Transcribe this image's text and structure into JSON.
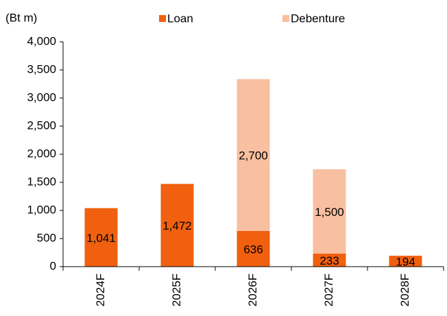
{
  "chart_data": {
    "type": "bar",
    "stacked": true,
    "y_label": "(Bt m)",
    "categories": [
      "2024F",
      "2025F",
      "2026F",
      "2027F",
      "2028F"
    ],
    "series": [
      {
        "name": "Loan",
        "color": "#f0600f",
        "values": [
          1041,
          1472,
          636,
          233,
          194
        ],
        "value_labels": [
          "1,041",
          "1,472",
          "636",
          "233",
          "194"
        ]
      },
      {
        "name": "Debenture",
        "color": "#f8bfa0",
        "values": [
          null,
          null,
          2700,
          1500,
          null
        ],
        "value_labels": [
          null,
          null,
          "2,700",
          "1,500",
          null
        ]
      }
    ],
    "ylim": [
      0,
      4000
    ],
    "yticks": [
      0,
      500,
      {
        "value": 1000,
        "label": "1,000"
      },
      {
        "value": 1500,
        "label": "1,500"
      },
      {
        "value": 2000,
        "label": "2,000"
      },
      {
        "value": 2500,
        "label": "2,500"
      },
      {
        "value": 3000,
        "label": "3,000"
      },
      {
        "value": 3500,
        "label": "3,500"
      },
      {
        "value": 4000,
        "label": "4,000"
      }
    ],
    "legend": "top"
  }
}
